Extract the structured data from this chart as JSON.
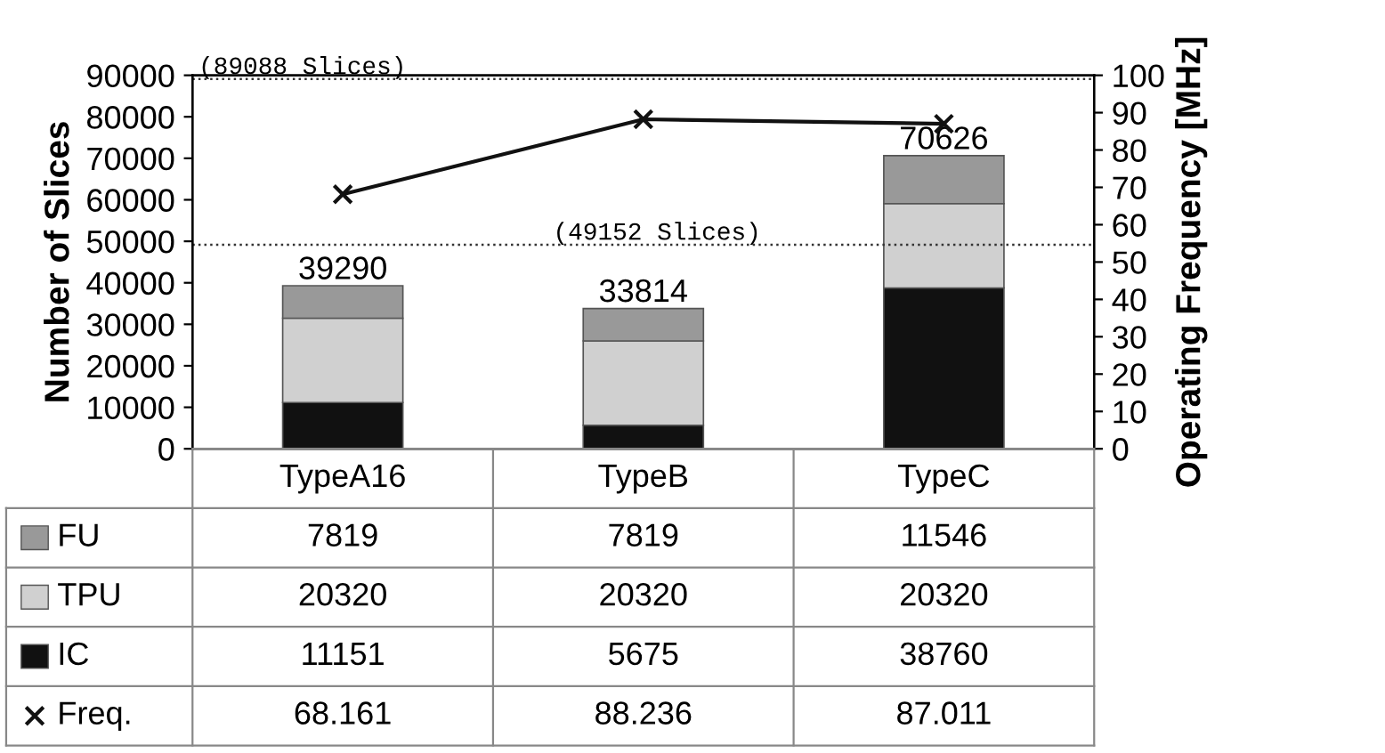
{
  "chart_data": {
    "type": "bar",
    "stacked": true,
    "ylabel": "Number of Slices",
    "y2label": "Operating Frequency [MHz]",
    "categories": [
      "TypeA16",
      "TypeB",
      "TypeC"
    ],
    "series": [
      {
        "name": "IC",
        "color": "#111111",
        "values": [
          11151,
          5675,
          38760
        ]
      },
      {
        "name": "TPU",
        "color": "#d0d0d0",
        "values": [
          20320,
          20320,
          20320
        ]
      },
      {
        "name": "FU",
        "color": "#999999",
        "values": [
          7819,
          7819,
          11546
        ]
      },
      {
        "name": "Freq.",
        "type": "line",
        "axis": "y2",
        "color": "#111111",
        "marker": "cross",
        "values": [
          68.161,
          88.236,
          87.011
        ]
      }
    ],
    "totals": [
      "39290",
      "33814",
      "70626"
    ],
    "ylim": [
      0,
      90000
    ],
    "yticks": [
      0,
      10000,
      20000,
      30000,
      40000,
      50000,
      60000,
      70000,
      80000,
      90000
    ],
    "y2lim": [
      0,
      100
    ],
    "y2ticks": [
      0,
      10,
      20,
      30,
      40,
      50,
      60,
      70,
      80,
      90,
      100
    ],
    "ref_lines": [
      {
        "axis": "y",
        "value": 89088,
        "label": "(89088 Slices)",
        "line_style": "dotted",
        "color": "#333333"
      },
      {
        "axis": "y",
        "value": 49152,
        "label": "(49152 Slices)",
        "line_style": "dotted",
        "color": "#333333"
      }
    ],
    "data_labels": true,
    "legend": "bottom",
    "grid": false
  }
}
